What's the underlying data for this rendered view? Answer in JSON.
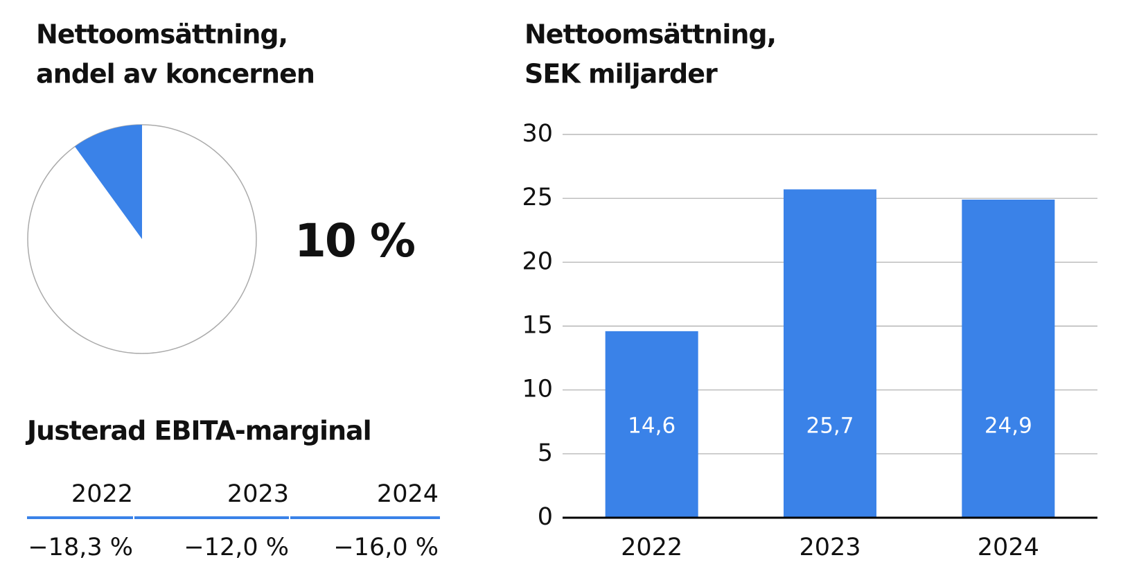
{
  "chart_data": [
    {
      "type": "pie",
      "title": [
        "Nettoomsättning,",
        "andel av koncernen"
      ],
      "values": [
        10
      ],
      "value_labels": [
        "10 %"
      ],
      "color": "#3a82e8"
    },
    {
      "type": "bar",
      "title": [
        "Nettoomsättning,",
        "SEK miljarder"
      ],
      "categories": [
        "2022",
        "2023",
        "2024"
      ],
      "values": [
        14.6,
        25.7,
        24.9
      ],
      "value_labels": [
        "14,6",
        "25,7",
        "24,9"
      ],
      "color": "#3a82e8",
      "ylim": [
        0,
        30
      ],
      "yticks": [
        0,
        5,
        10,
        15,
        20,
        25,
        30
      ],
      "grid": true
    }
  ],
  "table": {
    "title": "Justerad EBITA-marginal",
    "columns": [
      "2022",
      "2023",
      "2024"
    ],
    "rows": [
      [
        "−18,3 %",
        "−12,0 %",
        "−16,0 %"
      ]
    ]
  }
}
